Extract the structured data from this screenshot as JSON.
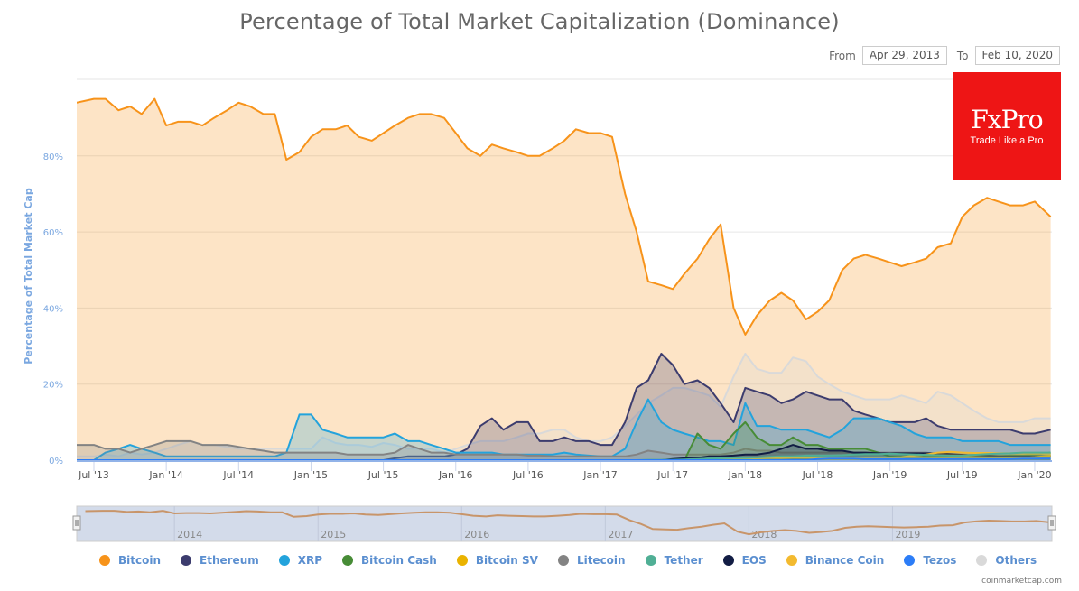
{
  "title": "Percentage of Total Market Capitalization (Dominance)",
  "range": {
    "from_label": "From",
    "from_value": "Apr 29, 2013",
    "to_label": "To",
    "to_value": "Feb 10, 2020"
  },
  "ad": {
    "brand": "FxPro",
    "tagline": "Trade Like a Pro"
  },
  "credit": "coinmarketcap.com",
  "colors": {
    "plot_bg": "#fce3c6",
    "navigator_bg": "#d3dbea",
    "axis_line": "#6f9ae0"
  },
  "chart_data": {
    "type": "area",
    "title": "Percentage of Total Market Capitalization (Dominance)",
    "ylabel": "Percentage of Total Market Cap",
    "xlabel": "",
    "ylim": [
      0,
      100
    ],
    "y_ticks": [
      "0%",
      "20%",
      "40%",
      "60%",
      "80%"
    ],
    "y_tick_values": [
      0,
      20,
      40,
      60,
      80
    ],
    "x_ticks": [
      "Jul '13",
      "Jan '14",
      "Jul '14",
      "Jan '15",
      "Jul '15",
      "Jan '16",
      "Jul '16",
      "Jan '17",
      "Jul '17",
      "Jan '18",
      "Jul '18",
      "Jan '19",
      "Jul '19",
      "Jan '20"
    ],
    "x_tick_values": [
      2013.5,
      2014.0,
      2014.5,
      2015.0,
      2015.5,
      2016.0,
      2016.5,
      2017.0,
      2017.5,
      2018.0,
      2018.5,
      2019.0,
      2019.5,
      2020.0
    ],
    "x_range": [
      2013.38,
      2020.11
    ],
    "navigator_labels": [
      "2014",
      "2015",
      "2016",
      "2017",
      "2018",
      "2019"
    ],
    "navigator_label_values": [
      2014,
      2015,
      2016,
      2017,
      2018,
      2019
    ],
    "legend_position": "bottom",
    "grid": true,
    "x": [
      2013.38,
      2013.5,
      2013.58,
      2013.67,
      2013.75,
      2013.83,
      2013.92,
      2014.0,
      2014.08,
      2014.17,
      2014.25,
      2014.33,
      2014.42,
      2014.5,
      2014.58,
      2014.67,
      2014.75,
      2014.83,
      2014.92,
      2015.0,
      2015.08,
      2015.17,
      2015.25,
      2015.33,
      2015.42,
      2015.5,
      2015.58,
      2015.67,
      2015.75,
      2015.83,
      2015.92,
      2016.0,
      2016.08,
      2016.17,
      2016.25,
      2016.33,
      2016.42,
      2016.5,
      2016.58,
      2016.67,
      2016.75,
      2016.83,
      2016.92,
      2017.0,
      2017.08,
      2017.17,
      2017.25,
      2017.33,
      2017.42,
      2017.5,
      2017.58,
      2017.67,
      2017.75,
      2017.83,
      2017.92,
      2018.0,
      2018.08,
      2018.17,
      2018.25,
      2018.33,
      2018.42,
      2018.5,
      2018.58,
      2018.67,
      2018.75,
      2018.83,
      2018.92,
      2019.0,
      2019.08,
      2019.17,
      2019.25,
      2019.33,
      2019.42,
      2019.5,
      2019.58,
      2019.67,
      2019.75,
      2019.83,
      2019.92,
      2020.0,
      2020.11
    ],
    "series": [
      {
        "name": "Bitcoin",
        "color": "#f7931a",
        "values": [
          94,
          95,
          95,
          92,
          93,
          91,
          95,
          88,
          89,
          89,
          88,
          90,
          92,
          94,
          93,
          91,
          91,
          79,
          81,
          85,
          87,
          87,
          88,
          85,
          84,
          86,
          88,
          90,
          91,
          91,
          90,
          86,
          82,
          80,
          83,
          82,
          81,
          80,
          80,
          82,
          84,
          87,
          86,
          86,
          85,
          70,
          60,
          47,
          46,
          45,
          49,
          53,
          58,
          62,
          40,
          33,
          38,
          42,
          44,
          42,
          37,
          39,
          42,
          50,
          53,
          54,
          53,
          52,
          51,
          52,
          53,
          56,
          57,
          64,
          67,
          69,
          68,
          67,
          67,
          68,
          64
        ]
      },
      {
        "name": "Others",
        "color": "#d9d9d9",
        "values": [
          1,
          1,
          1.5,
          1,
          2,
          1.5,
          2,
          3,
          4,
          5,
          4,
          4,
          3.5,
          3,
          3,
          3,
          3,
          3,
          3,
          3,
          6,
          4.5,
          4,
          4,
          3.5,
          4.5,
          4,
          3,
          3,
          3,
          2,
          3,
          4,
          5,
          5,
          5,
          6,
          7,
          7,
          8,
          8,
          6,
          5,
          5,
          6,
          9,
          12,
          15,
          17,
          19,
          19,
          18,
          17,
          14,
          22,
          28,
          24,
          23,
          23,
          27,
          26,
          22,
          20,
          18,
          17,
          16,
          16,
          16,
          17,
          16,
          15,
          18,
          17,
          15,
          13,
          11,
          10,
          10,
          10,
          11,
          11
        ]
      },
      {
        "name": "Ethereum",
        "color": "#3c3c6e",
        "values": [
          0,
          0,
          0,
          0,
          0,
          0,
          0,
          0,
          0,
          0,
          0,
          0,
          0,
          0,
          0,
          0,
          0,
          0,
          0,
          0,
          0,
          0,
          0,
          0,
          0,
          0,
          0.5,
          1,
          1,
          1,
          1,
          1.5,
          3,
          9,
          11,
          8,
          10,
          10,
          5,
          5,
          6,
          5,
          5,
          4,
          4,
          10,
          19,
          21,
          28,
          25,
          20,
          21,
          19,
          15,
          10,
          19,
          18,
          17,
          15,
          16,
          18,
          17,
          16,
          16,
          13,
          12,
          11,
          10,
          10,
          10,
          11,
          9,
          8,
          8,
          8,
          8,
          8,
          8,
          7,
          7,
          8
        ]
      },
      {
        "name": "XRP",
        "color": "#23a3dc",
        "values": [
          0,
          0,
          2,
          3,
          4,
          3,
          2,
          1,
          1,
          1,
          1,
          1,
          1,
          1,
          1,
          1,
          1,
          2,
          12,
          12,
          8,
          7,
          6,
          6,
          6,
          6,
          7,
          5,
          5,
          4,
          3,
          2,
          2,
          2,
          2,
          1.5,
          1.5,
          1.5,
          1.5,
          1.5,
          2,
          1.5,
          1.2,
          1,
          1,
          3,
          10,
          16,
          10,
          8,
          7,
          6,
          5,
          5,
          4,
          15,
          9,
          9,
          8,
          8,
          8,
          7,
          6,
          8,
          11,
          11,
          11,
          10,
          9,
          7,
          6,
          6,
          6,
          5,
          5,
          5,
          5,
          4,
          4,
          4,
          4
        ]
      },
      {
        "name": "Litecoin",
        "color": "#838383",
        "values": [
          4,
          4,
          3,
          3,
          2,
          3,
          4,
          5,
          5,
          5,
          4,
          4,
          4,
          3.5,
          3,
          2.5,
          2,
          2,
          2,
          2,
          2,
          2,
          1.5,
          1.5,
          1.5,
          1.5,
          2,
          4,
          3,
          2,
          2,
          1.5,
          1.5,
          1.5,
          1.5,
          1.5,
          1.5,
          1.2,
          1.2,
          1,
          1,
          1,
          1,
          1,
          1,
          1,
          1.5,
          2.5,
          2,
          1.5,
          1.5,
          1.5,
          1.5,
          1.5,
          2,
          3,
          2.5,
          2.5,
          2,
          2,
          2,
          2,
          2,
          2,
          2,
          2,
          2,
          2,
          2,
          2,
          2,
          1.5,
          1.5,
          1.5,
          1.5,
          1.2,
          1.2,
          1.2,
          1.2,
          1.2,
          1.2
        ]
      },
      {
        "name": "Bitcoin Cash",
        "color": "#478c36",
        "values": [
          0,
          0,
          0,
          0,
          0,
          0,
          0,
          0,
          0,
          0,
          0,
          0,
          0,
          0,
          0,
          0,
          0,
          0,
          0,
          0,
          0,
          0,
          0,
          0,
          0,
          0,
          0,
          0,
          0,
          0,
          0,
          0,
          0,
          0,
          0,
          0,
          0,
          0,
          0,
          0,
          0,
          0,
          0,
          0,
          0,
          0,
          0,
          0,
          0,
          0,
          0,
          7,
          4,
          3,
          7,
          10,
          6,
          4,
          4,
          6,
          4,
          4,
          3,
          3,
          3,
          3,
          2,
          1,
          1,
          1,
          1,
          1,
          1,
          1,
          1,
          1,
          1,
          1.2,
          1.2,
          1.5,
          2
        ]
      },
      {
        "name": "EOS",
        "color": "#121d44",
        "values": [
          0,
          0,
          0,
          0,
          0,
          0,
          0,
          0,
          0,
          0,
          0,
          0,
          0,
          0,
          0,
          0,
          0,
          0,
          0,
          0,
          0,
          0,
          0,
          0,
          0,
          0,
          0,
          0,
          0,
          0,
          0,
          0,
          0,
          0,
          0,
          0,
          0,
          0,
          0,
          0,
          0,
          0,
          0,
          0,
          0,
          0,
          0,
          0,
          0,
          0.3,
          0.5,
          0.6,
          1,
          1,
          1.2,
          1.5,
          1.5,
          2,
          3,
          4,
          3,
          3,
          2.5,
          2.5,
          2,
          2,
          1.8,
          1.8,
          1.8,
          1.8,
          1.8,
          1.8,
          1.6,
          1.4,
          1.2,
          1.2,
          1,
          1,
          1,
          1,
          1
        ]
      },
      {
        "name": "Bitcoin SV",
        "color": "#eab300",
        "values": [
          0,
          0,
          0,
          0,
          0,
          0,
          0,
          0,
          0,
          0,
          0,
          0,
          0,
          0,
          0,
          0,
          0,
          0,
          0,
          0,
          0,
          0,
          0,
          0,
          0,
          0,
          0,
          0,
          0,
          0,
          0,
          0,
          0,
          0,
          0,
          0,
          0,
          0,
          0,
          0,
          0,
          0,
          0,
          0,
          0,
          0,
          0,
          0,
          0,
          0,
          0,
          0,
          0,
          0,
          0,
          0,
          0,
          0,
          0,
          0,
          0,
          0,
          0,
          0,
          0,
          0.5,
          0.4,
          0.4,
          0.4,
          0.4,
          0.4,
          0.5,
          0.7,
          0.8,
          0.8,
          0.7,
          0.7,
          0.6,
          0.6,
          0.8,
          1.2
        ]
      },
      {
        "name": "Binance Coin",
        "color": "#f3ba2f",
        "values": [
          0,
          0,
          0,
          0,
          0,
          0,
          0,
          0,
          0,
          0,
          0,
          0,
          0,
          0,
          0,
          0,
          0,
          0,
          0,
          0,
          0,
          0,
          0,
          0,
          0,
          0,
          0,
          0,
          0,
          0,
          0,
          0,
          0,
          0,
          0,
          0,
          0,
          0,
          0,
          0,
          0,
          0,
          0,
          0,
          0,
          0,
          0,
          0,
          0,
          0,
          0,
          0.1,
          0.2,
          0.3,
          0.3,
          0.4,
          0.5,
          0.6,
          0.6,
          0.7,
          0.7,
          0.6,
          0.6,
          0.6,
          0.6,
          0.6,
          0.6,
          0.7,
          0.8,
          1.2,
          1.5,
          2,
          2.2,
          2,
          1.9,
          1.9,
          1.8,
          1.8,
          1.7,
          1.7,
          1.7
        ]
      },
      {
        "name": "Tether",
        "color": "#50af95",
        "values": [
          0,
          0,
          0,
          0,
          0,
          0,
          0,
          0,
          0,
          0,
          0,
          0,
          0,
          0,
          0,
          0,
          0,
          0,
          0,
          0,
          0,
          0,
          0,
          0,
          0,
          0,
          0,
          0,
          0,
          0,
          0,
          0,
          0,
          0,
          0,
          0,
          0,
          0,
          0,
          0,
          0,
          0,
          0,
          0,
          0,
          0,
          0,
          0.1,
          0.1,
          0.1,
          0.2,
          0.3,
          0.4,
          0.5,
          0.6,
          0.6,
          0.7,
          0.9,
          1,
          1,
          1.2,
          1.2,
          1.2,
          1.3,
          1.5,
          1.6,
          1.6,
          1.7,
          1.6,
          1.5,
          1.4,
          1.3,
          1.2,
          1.2,
          1.4,
          1.6,
          1.7,
          1.8,
          2,
          2,
          2
        ]
      },
      {
        "name": "Tezos",
        "color": "#2c7df7",
        "values": [
          0,
          0,
          0,
          0,
          0,
          0,
          0,
          0,
          0,
          0,
          0,
          0,
          0,
          0,
          0,
          0,
          0,
          0,
          0,
          0,
          0,
          0,
          0,
          0,
          0,
          0,
          0,
          0,
          0,
          0,
          0,
          0,
          0,
          0,
          0,
          0,
          0,
          0,
          0,
          0,
          0,
          0,
          0,
          0,
          0,
          0,
          0,
          0,
          0,
          0,
          0,
          0,
          0,
          0,
          0,
          0,
          0,
          0,
          0,
          0,
          0,
          0.3,
          0.4,
          0.4,
          0.4,
          0.3,
          0.3,
          0.3,
          0.3,
          0.3,
          0.3,
          0.3,
          0.3,
          0.3,
          0.3,
          0.3,
          0.3,
          0.3,
          0.4,
          0.4,
          0.4
        ]
      }
    ]
  },
  "legend": [
    {
      "label": "Bitcoin",
      "color": "#f7931a"
    },
    {
      "label": "Ethereum",
      "color": "#3c3c6e"
    },
    {
      "label": "XRP",
      "color": "#23a3dc"
    },
    {
      "label": "Bitcoin Cash",
      "color": "#478c36"
    },
    {
      "label": "Bitcoin SV",
      "color": "#eab300"
    },
    {
      "label": "Litecoin",
      "color": "#838383"
    },
    {
      "label": "Tether",
      "color": "#50af95"
    },
    {
      "label": "EOS",
      "color": "#121d44"
    },
    {
      "label": "Binance Coin",
      "color": "#f3ba2f"
    },
    {
      "label": "Tezos",
      "color": "#2c7df7"
    },
    {
      "label": "Others",
      "color": "#d9d9d9"
    }
  ]
}
